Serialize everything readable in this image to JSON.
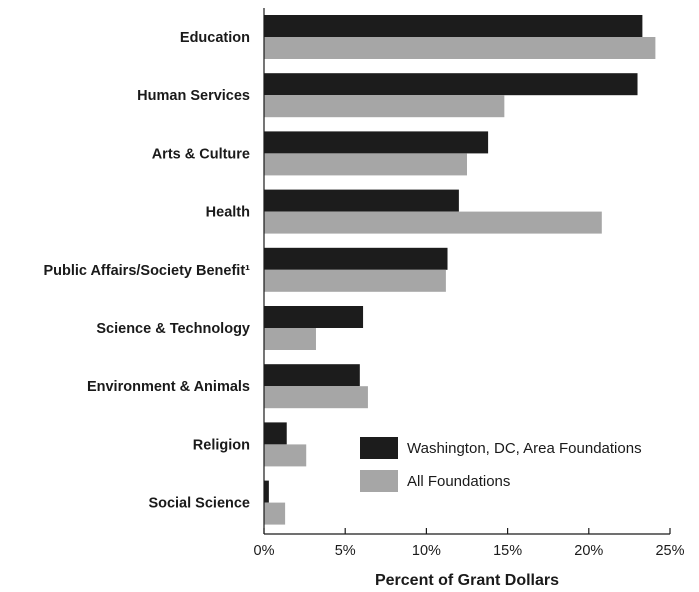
{
  "chart_data": {
    "type": "bar",
    "orientation": "horizontal",
    "categories": [
      "Education",
      "Human Services",
      "Arts & Culture",
      "Health",
      "Public Affairs/Society Benefit¹",
      "Science & Technology",
      "Environment & Animals",
      "Religion",
      "Social Science"
    ],
    "series": [
      {
        "name": "Washington, DC, Area Foundations",
        "color": "#1c1c1c",
        "values": [
          23.3,
          23.0,
          13.8,
          12.0,
          11.3,
          6.1,
          5.9,
          1.4,
          0.3
        ]
      },
      {
        "name": "All Foundations",
        "color": "#a6a6a6",
        "values": [
          24.1,
          14.8,
          12.5,
          20.8,
          11.2,
          3.2,
          6.4,
          2.6,
          1.3
        ]
      }
    ],
    "xlabel": "Percent of Grant Dollars",
    "ylabel": "",
    "xlim": [
      0,
      25
    ],
    "xticks": [
      "0%",
      "5%",
      "10%",
      "15%",
      "20%",
      "25%"
    ],
    "grid": false,
    "legend_position": "bottom-right"
  }
}
